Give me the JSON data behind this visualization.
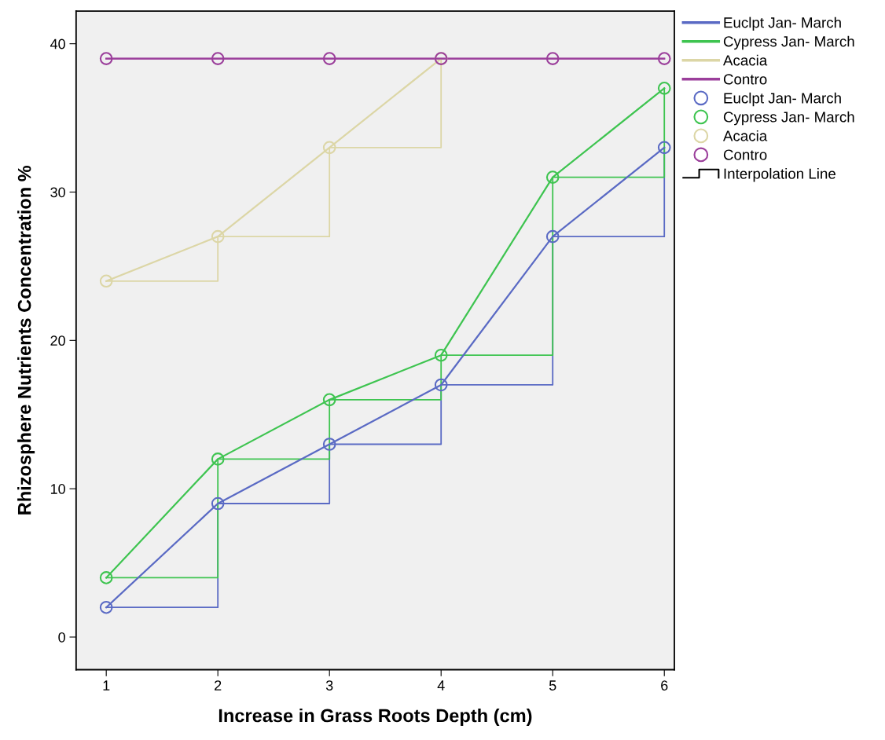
{
  "chart_data": {
    "type": "line",
    "xlabel": "Increase in Grass Roots Depth (cm)",
    "ylabel": "Rhizosphere Nutrients Concentration %",
    "x": [
      1,
      2,
      3,
      4,
      5,
      6
    ],
    "xlim": [
      0.73,
      6.09
    ],
    "xticks": [
      1,
      2,
      3,
      4,
      5,
      6
    ],
    "ylim": [
      -2.2,
      42.2
    ],
    "yticks": [
      0,
      10,
      20,
      30,
      40
    ],
    "grid": false,
    "legend": "right",
    "series": [
      {
        "name": "Euclpt Jan- March",
        "marker": "none",
        "color": "#5a6ac4",
        "values": [
          2,
          9,
          13,
          17,
          27,
          33
        ]
      },
      {
        "name": "Cypress Jan- March",
        "marker": "none",
        "color": "#3ec450",
        "values": [
          4,
          12,
          16,
          19,
          31,
          37
        ]
      },
      {
        "name": "Acacia",
        "marker": "none",
        "color": "#dcd6a6",
        "values": [
          24,
          27,
          33,
          39,
          null,
          null
        ]
      },
      {
        "name": "Contro",
        "marker": "none",
        "color": "#9b3f9b",
        "values": [
          39,
          39,
          39,
          39,
          39,
          39
        ]
      },
      {
        "name": "Euclpt Jan- March",
        "type": "scatter",
        "marker": "circle",
        "color": "#5a6ac4",
        "values": [
          2,
          9,
          13,
          17,
          27,
          33
        ]
      },
      {
        "name": "Cypress Jan- March",
        "type": "scatter",
        "marker": "circle",
        "color": "#3ec450",
        "values": [
          4,
          12,
          16,
          19,
          31,
          37
        ]
      },
      {
        "name": "Acacia",
        "type": "scatter",
        "marker": "circle",
        "color": "#dcd6a6",
        "values": [
          24,
          27,
          33,
          39,
          null,
          null
        ]
      },
      {
        "name": "Contro",
        "type": "scatter",
        "marker": "circle",
        "color": "#9b3f9b",
        "values": [
          39,
          39,
          39,
          39,
          39,
          39
        ]
      },
      {
        "type": "step",
        "color": "#5a6ac4",
        "values": [
          2,
          9,
          13,
          17,
          27,
          33
        ]
      },
      {
        "type": "step",
        "color": "#3ec450",
        "values": [
          4,
          12,
          16,
          19,
          31,
          37
        ]
      },
      {
        "type": "step",
        "color": "#dcd6a6",
        "values": [
          24,
          27,
          33,
          39,
          null,
          null
        ]
      },
      {
        "type": "step",
        "color": "#9b3f9b",
        "values": [
          39,
          39,
          39,
          39,
          39,
          39
        ]
      }
    ],
    "annotations": [
      "Interpolation Line"
    ]
  }
}
